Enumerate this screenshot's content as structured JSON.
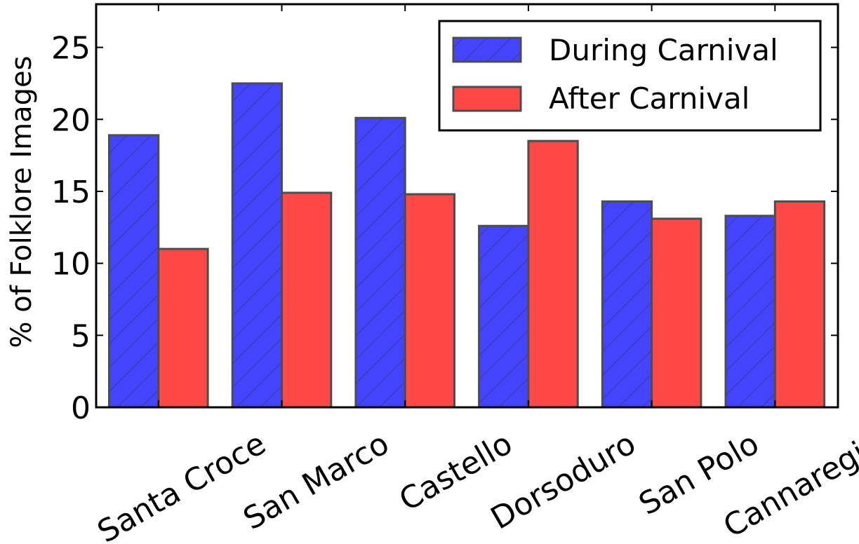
{
  "chart_data": {
    "type": "bar",
    "ylabel": "% of Folklore Images",
    "ylim": [
      0,
      28
    ],
    "yticks": [
      0,
      5,
      10,
      15,
      20,
      25
    ],
    "categories": [
      "Santa Croce",
      "San Marco",
      "Castello",
      "Dorsoduro",
      "San Polo",
      "Cannaregio"
    ],
    "series": [
      {
        "name": "During Carnival",
        "color": "#4444ff",
        "hatch": true,
        "values": [
          18.9,
          22.5,
          20.1,
          12.6,
          14.3,
          13.3
        ]
      },
      {
        "name": "After Carnival",
        "color": "#ff4949",
        "hatch": false,
        "values": [
          11.0,
          14.9,
          14.8,
          18.5,
          13.1,
          14.3
        ]
      }
    ],
    "legend": {
      "position": "top-right"
    },
    "grid": false
  }
}
